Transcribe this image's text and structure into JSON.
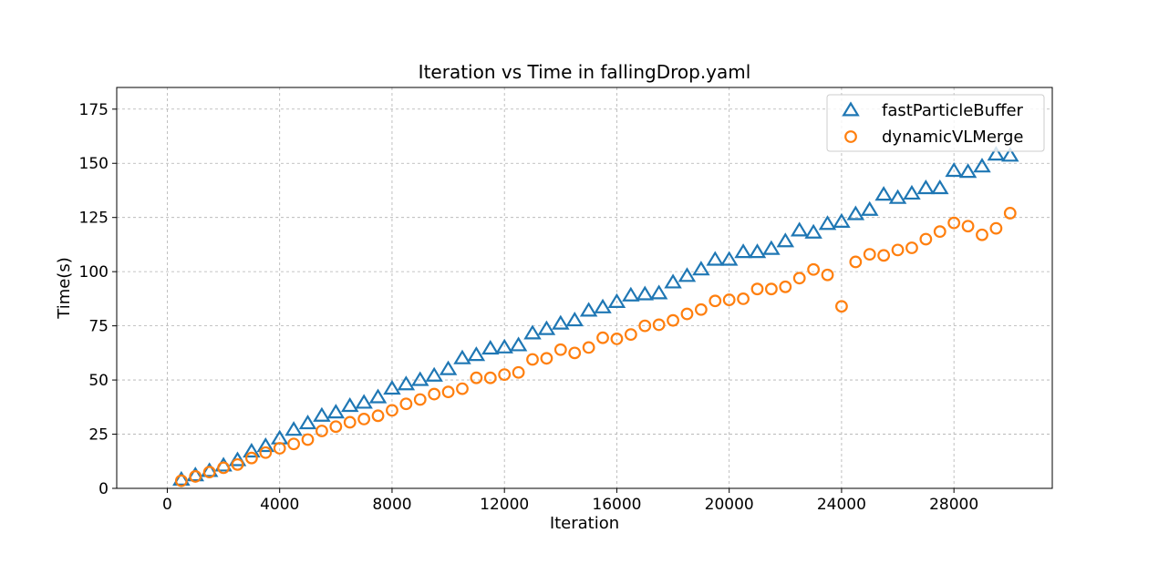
{
  "chart_data": {
    "type": "scatter",
    "title": "Iteration vs Time in fallingDrop.yaml",
    "xlabel": "Iteration",
    "ylabel": "Time(s)",
    "xlim": [
      -1800,
      31500
    ],
    "ylim": [
      0,
      185
    ],
    "xticks": [
      0,
      4000,
      8000,
      12000,
      16000,
      20000,
      24000,
      28000
    ],
    "yticks": [
      0,
      25,
      50,
      75,
      100,
      125,
      150,
      175
    ],
    "grid": true,
    "legend_position": "top-right",
    "x": [
      500,
      1000,
      1500,
      2000,
      2500,
      3000,
      3500,
      4000,
      4500,
      5000,
      5500,
      6000,
      6500,
      7000,
      7500,
      8000,
      8500,
      9000,
      9500,
      10000,
      10500,
      11000,
      11500,
      12000,
      12500,
      13000,
      13500,
      14000,
      14500,
      15000,
      15500,
      16000,
      16500,
      17000,
      17500,
      18000,
      18500,
      19000,
      19500,
      20000,
      20500,
      21000,
      21500,
      22000,
      22500,
      23000,
      23500,
      24000,
      24500,
      25000,
      25500,
      26000,
      26500,
      27000,
      27500,
      28000,
      28500,
      29000,
      29500,
      30000
    ],
    "series": [
      {
        "name": "fastParticleBuffer",
        "marker": "triangle",
        "color": "#1f77b4",
        "values": [
          4,
          6,
          8,
          10.5,
          13,
          17,
          19.5,
          23,
          27,
          30,
          33.5,
          35,
          38,
          39.5,
          42,
          46,
          48,
          50,
          52,
          55,
          60,
          61.5,
          64.5,
          65,
          66,
          71.5,
          73.5,
          76,
          77.5,
          82,
          83.5,
          86,
          89,
          89.5,
          90,
          95,
          98,
          101,
          105.5,
          105.5,
          109,
          109,
          110.5,
          114,
          119,
          118,
          122,
          123,
          126.5,
          128.5,
          135.5,
          134,
          136,
          138.5,
          138.5,
          146.5,
          146,
          148.5,
          154,
          153.5
        ]
      },
      {
        "name": "dynamicVLMerge",
        "marker": "circle",
        "color": "#ff7f0e",
        "values": [
          3.5,
          5.5,
          7.5,
          9.5,
          11,
          14,
          16.5,
          18.5,
          20.5,
          22.5,
          26.5,
          28.5,
          30.5,
          32,
          33.5,
          36,
          39,
          41,
          43.5,
          44.5,
          46,
          51,
          51,
          52.5,
          53.5,
          59.5,
          60,
          64,
          62.5,
          65,
          69.5,
          69,
          71,
          75,
          75.5,
          77.5,
          80.5,
          82.5,
          86.5,
          87,
          87.5,
          92,
          92,
          93,
          97,
          101,
          98.5,
          84,
          104.5,
          108,
          107.5,
          110,
          111,
          115,
          118.5,
          122.5,
          121,
          117,
          120,
          127
        ]
      }
    ]
  }
}
